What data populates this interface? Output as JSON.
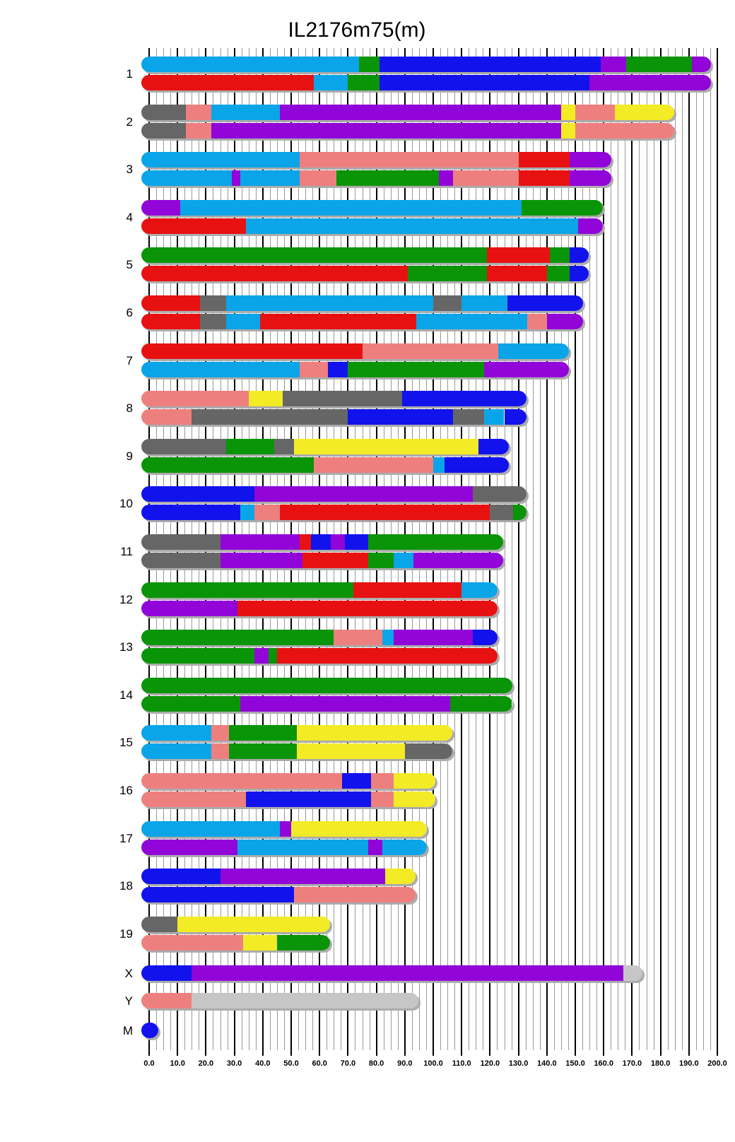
{
  "title": "IL2176m75(m)",
  "chart_data": {
    "type": "karyogram",
    "title": "IL2176m75(m)",
    "x_axis": {
      "min": 0,
      "max": 200,
      "major_tick": 10,
      "minor_tick": 2.5,
      "tick_labels": [
        "0.0",
        "10.0",
        "20.0",
        "30.0",
        "40.0",
        "50.0",
        "60.0",
        "70.0",
        "80.0",
        "90.0",
        "100.0",
        "110.0",
        "120.0",
        "130.0",
        "140.0",
        "150.0",
        "160.0",
        "170.0",
        "180.0",
        "190.0",
        "200.0"
      ]
    },
    "legend_position": "none",
    "grid": true,
    "palette": {
      "cyan": "#0aa5e8",
      "blue": "#1213ec",
      "purple": "#9205d8",
      "green": "#0a9408",
      "red": "#e81112",
      "pink": "#ee7f7f",
      "yellow": "#f2eb25",
      "gray": "#666666",
      "silver": "#c6c6c6"
    },
    "shadow_color": "#ababab",
    "chromosomes": [
      {
        "name": "1",
        "length": 195,
        "bars": [
          [
            [
              0,
              74,
              "cyan"
            ],
            [
              74,
              81,
              "green"
            ],
            [
              81,
              159,
              "blue"
            ],
            [
              159,
              168,
              "purple"
            ],
            [
              168,
              191,
              "green"
            ],
            [
              191,
              195,
              "purple"
            ]
          ],
          [
            [
              0,
              58,
              "red"
            ],
            [
              58,
              70,
              "cyan"
            ],
            [
              70,
              81,
              "green"
            ],
            [
              81,
              155,
              "blue"
            ],
            [
              155,
              195,
              "purple"
            ]
          ]
        ]
      },
      {
        "name": "2",
        "length": 182,
        "bars": [
          [
            [
              0,
              13,
              "gray"
            ],
            [
              13,
              22,
              "pink"
            ],
            [
              22,
              46,
              "cyan"
            ],
            [
              46,
              145,
              "purple"
            ],
            [
              145,
              150,
              "yellow"
            ],
            [
              150,
              164,
              "pink"
            ],
            [
              164,
              182,
              "yellow"
            ]
          ],
          [
            [
              0,
              13,
              "gray"
            ],
            [
              13,
              22,
              "pink"
            ],
            [
              22,
              145,
              "purple"
            ],
            [
              145,
              150,
              "yellow"
            ],
            [
              150,
              182,
              "pink"
            ]
          ]
        ]
      },
      {
        "name": "3",
        "length": 160,
        "bars": [
          [
            [
              0,
              53,
              "cyan"
            ],
            [
              53,
              130,
              "pink"
            ],
            [
              130,
              148,
              "red"
            ],
            [
              148,
              160,
              "purple"
            ]
          ],
          [
            [
              0,
              29,
              "cyan"
            ],
            [
              29,
              32,
              "purple"
            ],
            [
              32,
              53,
              "cyan"
            ],
            [
              53,
              66,
              "pink"
            ],
            [
              66,
              102,
              "green"
            ],
            [
              102,
              107,
              "purple"
            ],
            [
              107,
              130,
              "pink"
            ],
            [
              130,
              148,
              "red"
            ],
            [
              148,
              160,
              "purple"
            ]
          ]
        ]
      },
      {
        "name": "4",
        "length": 157,
        "bars": [
          [
            [
              0,
              11,
              "purple"
            ],
            [
              11,
              131,
              "cyan"
            ],
            [
              131,
              157,
              "green"
            ]
          ],
          [
            [
              0,
              34,
              "red"
            ],
            [
              34,
              151,
              "cyan"
            ],
            [
              151,
              157,
              "purple"
            ]
          ]
        ]
      },
      {
        "name": "5",
        "length": 152,
        "bars": [
          [
            [
              0,
              119,
              "green"
            ],
            [
              119,
              141,
              "red"
            ],
            [
              141,
              148,
              "green"
            ],
            [
              148,
              152,
              "blue"
            ]
          ],
          [
            [
              0,
              91,
              "red"
            ],
            [
              91,
              119,
              "green"
            ],
            [
              119,
              140,
              "red"
            ],
            [
              140,
              148,
              "green"
            ],
            [
              148,
              152,
              "blue"
            ]
          ]
        ]
      },
      {
        "name": "6",
        "length": 150,
        "bars": [
          [
            [
              0,
              18,
              "red"
            ],
            [
              18,
              27,
              "gray"
            ],
            [
              27,
              100,
              "cyan"
            ],
            [
              100,
              110,
              "gray"
            ],
            [
              110,
              126,
              "cyan"
            ],
            [
              126,
              150,
              "blue"
            ]
          ],
          [
            [
              0,
              18,
              "red"
            ],
            [
              18,
              27,
              "gray"
            ],
            [
              27,
              39,
              "cyan"
            ],
            [
              39,
              94,
              "red"
            ],
            [
              94,
              133,
              "cyan"
            ],
            [
              133,
              140,
              "pink"
            ],
            [
              140,
              150,
              "purple"
            ]
          ]
        ]
      },
      {
        "name": "7",
        "length": 145,
        "bars": [
          [
            [
              0,
              75,
              "red"
            ],
            [
              75,
              123,
              "pink"
            ],
            [
              123,
              145,
              "cyan"
            ]
          ],
          [
            [
              0,
              53,
              "cyan"
            ],
            [
              53,
              63,
              "pink"
            ],
            [
              63,
              70,
              "blue"
            ],
            [
              70,
              118,
              "green"
            ],
            [
              118,
              145,
              "purple"
            ]
          ]
        ]
      },
      {
        "name": "8",
        "length": 130,
        "bars": [
          [
            [
              0,
              35,
              "pink"
            ],
            [
              35,
              47,
              "yellow"
            ],
            [
              47,
              89,
              "gray"
            ],
            [
              89,
              130,
              "blue"
            ]
          ],
          [
            [
              0,
              15,
              "pink"
            ],
            [
              15,
              70,
              "gray"
            ],
            [
              70,
              107,
              "blue"
            ],
            [
              107,
              118,
              "gray"
            ],
            [
              118,
              125,
              "cyan"
            ],
            [
              125,
              130,
              "blue"
            ]
          ]
        ]
      },
      {
        "name": "9",
        "length": 124,
        "bars": [
          [
            [
              0,
              27,
              "gray"
            ],
            [
              27,
              44,
              "green"
            ],
            [
              44,
              51,
              "gray"
            ],
            [
              51,
              116,
              "yellow"
            ],
            [
              116,
              124,
              "blue"
            ]
          ],
          [
            [
              0,
              58,
              "green"
            ],
            [
              58,
              100,
              "pink"
            ],
            [
              100,
              104,
              "cyan"
            ],
            [
              104,
              124,
              "blue"
            ]
          ]
        ]
      },
      {
        "name": "10",
        "length": 130,
        "bars": [
          [
            [
              0,
              37,
              "blue"
            ],
            [
              37,
              114,
              "purple"
            ],
            [
              114,
              130,
              "gray"
            ]
          ],
          [
            [
              0,
              32,
              "blue"
            ],
            [
              32,
              37,
              "cyan"
            ],
            [
              37,
              46,
              "pink"
            ],
            [
              46,
              120,
              "red"
            ],
            [
              120,
              128,
              "gray"
            ],
            [
              128,
              130,
              "green"
            ]
          ]
        ]
      },
      {
        "name": "11",
        "length": 122,
        "bars": [
          [
            [
              0,
              25,
              "gray"
            ],
            [
              25,
              53,
              "purple"
            ],
            [
              53,
              57,
              "red"
            ],
            [
              57,
              64,
              "blue"
            ],
            [
              64,
              69,
              "purple"
            ],
            [
              69,
              77,
              "blue"
            ],
            [
              77,
              122,
              "green"
            ]
          ],
          [
            [
              0,
              25,
              "gray"
            ],
            [
              25,
              54,
              "purple"
            ],
            [
              54,
              77,
              "red"
            ],
            [
              77,
              86,
              "green"
            ],
            [
              86,
              93,
              "cyan"
            ],
            [
              93,
              122,
              "purple"
            ]
          ]
        ]
      },
      {
        "name": "12",
        "length": 120,
        "bars": [
          [
            [
              0,
              72,
              "green"
            ],
            [
              72,
              110,
              "red"
            ],
            [
              110,
              120,
              "cyan"
            ]
          ],
          [
            [
              0,
              31,
              "purple"
            ],
            [
              31,
              120,
              "red"
            ]
          ]
        ]
      },
      {
        "name": "13",
        "length": 120,
        "bars": [
          [
            [
              0,
              65,
              "green"
            ],
            [
              65,
              82,
              "pink"
            ],
            [
              82,
              86,
              "cyan"
            ],
            [
              86,
              114,
              "purple"
            ],
            [
              114,
              120,
              "blue"
            ]
          ],
          [
            [
              0,
              37,
              "green"
            ],
            [
              37,
              42,
              "purple"
            ],
            [
              42,
              45,
              "green"
            ],
            [
              45,
              120,
              "red"
            ]
          ]
        ]
      },
      {
        "name": "14",
        "length": 125,
        "bars": [
          [
            [
              0,
              125,
              "green"
            ]
          ],
          [
            [
              0,
              32,
              "green"
            ],
            [
              32,
              106,
              "purple"
            ],
            [
              106,
              125,
              "green"
            ]
          ]
        ]
      },
      {
        "name": "15",
        "length": 104,
        "bars": [
          [
            [
              0,
              22,
              "cyan"
            ],
            [
              22,
              28,
              "pink"
            ],
            [
              28,
              52,
              "green"
            ],
            [
              52,
              104,
              "yellow"
            ]
          ],
          [
            [
              0,
              22,
              "cyan"
            ],
            [
              22,
              28,
              "pink"
            ],
            [
              28,
              52,
              "green"
            ],
            [
              52,
              90,
              "yellow"
            ],
            [
              90,
              104,
              "gray"
            ]
          ]
        ]
      },
      {
        "name": "16",
        "length": 98,
        "bars": [
          [
            [
              0,
              68,
              "pink"
            ],
            [
              68,
              78,
              "blue"
            ],
            [
              78,
              86,
              "pink"
            ],
            [
              86,
              98,
              "yellow"
            ]
          ],
          [
            [
              0,
              34,
              "pink"
            ],
            [
              34,
              78,
              "blue"
            ],
            [
              78,
              86,
              "pink"
            ],
            [
              86,
              98,
              "yellow"
            ]
          ]
        ]
      },
      {
        "name": "17",
        "length": 95,
        "bars": [
          [
            [
              0,
              46,
              "cyan"
            ],
            [
              46,
              50,
              "purple"
            ],
            [
              50,
              95,
              "yellow"
            ]
          ],
          [
            [
              0,
              31,
              "purple"
            ],
            [
              31,
              77,
              "cyan"
            ],
            [
              77,
              82,
              "purple"
            ],
            [
              82,
              95,
              "cyan"
            ]
          ]
        ]
      },
      {
        "name": "18",
        "length": 91,
        "bars": [
          [
            [
              0,
              25,
              "blue"
            ],
            [
              25,
              83,
              "purple"
            ],
            [
              83,
              91,
              "yellow"
            ]
          ],
          [
            [
              0,
              51,
              "blue"
            ],
            [
              51,
              91,
              "pink"
            ]
          ]
        ]
      },
      {
        "name": "19",
        "length": 61,
        "bars": [
          [
            [
              0,
              10,
              "gray"
            ],
            [
              10,
              61,
              "yellow"
            ]
          ],
          [
            [
              0,
              33,
              "pink"
            ],
            [
              33,
              45,
              "yellow"
            ],
            [
              45,
              61,
              "green"
            ]
          ]
        ]
      },
      {
        "name": "X",
        "length": 171,
        "bars": [
          [
            [
              0,
              15,
              "blue"
            ],
            [
              15,
              167,
              "purple"
            ],
            [
              167,
              171,
              "silver"
            ]
          ]
        ]
      },
      {
        "name": "Y",
        "length": 92,
        "bars": [
          [
            [
              0,
              15,
              "pink"
            ],
            [
              15,
              92,
              "silver"
            ]
          ]
        ]
      },
      {
        "name": "M",
        "length": 0.5,
        "bars": [
          [
            [
              0,
              0.5,
              "blue"
            ]
          ]
        ]
      }
    ]
  }
}
